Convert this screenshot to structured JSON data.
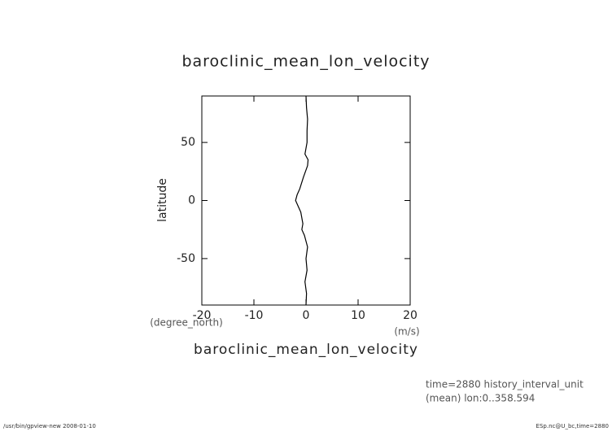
{
  "chart_data": {
    "type": "line",
    "title": "baroclinic_mean_lon_velocity",
    "x_label": "baroclinic_mean_lon_velocity",
    "x_unit": "(m/s)",
    "y_label": "latitude",
    "y_unit": "(degree_north)",
    "annotations": [
      "time=2880 history_interval_unit",
      "(mean) lon:0..358.594"
    ],
    "footer_left": "/usr/bin/gpview-new  2008-01-10",
    "footer_right": "ESp.nc@U_bc,time=2880",
    "y": [
      90,
      80,
      70,
      60,
      50,
      40,
      35,
      30,
      20,
      10,
      5,
      0,
      -5,
      -10,
      -20,
      -25,
      -30,
      -35,
      -40,
      -50,
      -60,
      -70,
      -80,
      -90
    ],
    "values": [
      0,
      0.1,
      0.3,
      0.2,
      0.2,
      -0.2,
      0.4,
      0.3,
      -0.5,
      -1.2,
      -1.7,
      -2,
      -1.5,
      -1,
      -0.6,
      -0.8,
      -0.3,
      0,
      0.3,
      0,
      0.2,
      -0.2,
      0.1,
      0
    ],
    "color": "#000000",
    "xlim": [
      -20,
      20
    ],
    "xticks": [
      -20,
      -10,
      0,
      10,
      20
    ],
    "ylim": [
      -90,
      90
    ],
    "yticks": [
      -50,
      0,
      50
    ]
  }
}
